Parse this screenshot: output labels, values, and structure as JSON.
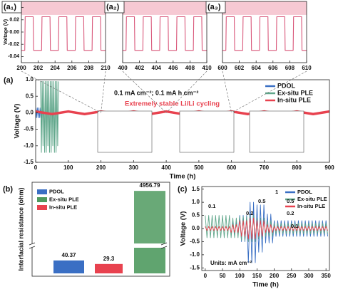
{
  "chart_data": [
    {
      "type": "line",
      "label": "(a₁)",
      "ylabel": "Voltage (V)",
      "xlim": [
        200,
        210
      ],
      "xticks": [
        200,
        202,
        204,
        206,
        208,
        210
      ],
      "ylim": [
        -0.05,
        0.05
      ],
      "yticks": [
        -0.04,
        -0.02,
        {
          "value": 0,
          "label": "0.00"
        },
        0.02,
        0.04
      ],
      "series": [
        {
          "color": "#d9577a",
          "x": [
            200,
            200.4,
            200.45,
            201.4,
            201.45,
            202.4,
            202.45,
            203.4,
            203.45,
            204.4,
            204.45,
            205.4,
            205.45,
            206.4,
            206.45,
            207.4,
            207.45,
            208.4,
            208.45,
            209.4,
            209.45,
            210
          ],
          "values": [
            -0.03,
            -0.03,
            0.025,
            0.025,
            -0.03,
            -0.03,
            0.025,
            0.025,
            -0.03,
            -0.03,
            0.025,
            0.025,
            -0.03,
            -0.03,
            0.025,
            0.025,
            -0.03,
            -0.03,
            0.025,
            0.025,
            -0.03,
            -0.03
          ]
        }
      ]
    },
    {
      "type": "line",
      "label": "(a₂)",
      "xlim": [
        400,
        410
      ],
      "xticks": [
        400,
        402,
        404,
        406,
        408,
        410
      ],
      "ylim": [
        -0.05,
        0.05
      ],
      "series": [
        {
          "color": "#d9577a",
          "x": [
            400,
            400.4,
            400.45,
            401.4,
            401.45,
            402.4,
            402.45,
            403.4,
            403.45,
            404.4,
            404.45,
            405.4,
            405.45,
            406.4,
            406.45,
            407.4,
            407.45,
            408.4,
            408.45,
            409.4,
            409.45,
            410
          ],
          "values": [
            -0.03,
            -0.03,
            0.025,
            0.025,
            -0.03,
            -0.03,
            0.025,
            0.025,
            -0.03,
            -0.03,
            0.025,
            0.025,
            -0.03,
            -0.03,
            0.025,
            0.025,
            -0.03,
            -0.03,
            0.025,
            0.025,
            -0.03,
            -0.03
          ]
        }
      ]
    },
    {
      "type": "line",
      "label": "(a₃)",
      "xlim": [
        600,
        610
      ],
      "xticks": [
        600,
        602,
        604,
        606,
        608,
        610
      ],
      "ylim": [
        -0.05,
        0.05
      ],
      "series": [
        {
          "color": "#d9577a",
          "x": [
            600,
            600.4,
            600.45,
            601.4,
            601.45,
            602.4,
            602.45,
            603.4,
            603.45,
            604.4,
            604.45,
            605.4,
            605.45,
            606.4,
            606.45,
            607.4,
            607.45,
            608.4,
            608.45,
            609.4,
            609.45,
            610
          ],
          "values": [
            -0.03,
            -0.03,
            0.025,
            0.025,
            -0.03,
            -0.03,
            0.025,
            0.025,
            -0.03,
            -0.03,
            0.025,
            0.025,
            -0.03,
            -0.03,
            0.025,
            0.025,
            -0.03,
            -0.03,
            0.025,
            0.025,
            -0.03,
            -0.03
          ]
        }
      ]
    },
    {
      "type": "line",
      "label": "(a)",
      "xlabel": "Time (h)",
      "ylabel": "Voltage (V)",
      "annotations": [
        "0.1 mA cm⁻²; 0.1 mA h cm⁻²",
        "Extremely stable Li/Li cycling"
      ],
      "xlim": [
        0,
        900
      ],
      "xticks": [
        0,
        100,
        200,
        300,
        400,
        500,
        600,
        700,
        800,
        900
      ],
      "ylim": [
        -1.5,
        1.0
      ],
      "yticks": [
        -1.5,
        {
          "value": -1,
          "label": "-1.0"
        },
        -0.5,
        {
          "value": 0,
          "label": "0.0"
        },
        0.5,
        {
          "value": 1,
          "label": "1.0"
        }
      ],
      "series": [
        {
          "name": "PDOL",
          "color": "#3a6fc4",
          "x": [
            0,
            2.5,
            5,
            7.5,
            10,
            12.5,
            15,
            17.5,
            20,
            22.5,
            25
          ],
          "values": [
            0.15,
            -0.15,
            0.15,
            -0.15,
            0.15,
            -0.15,
            0.15,
            -0.15,
            0.15,
            -0.15,
            0.15
          ]
        },
        {
          "name": "Ex-situ PLE",
          "color": "#5fa68a",
          "x": [
            15,
            17.5,
            20,
            22.5,
            25,
            27.5,
            30,
            32.5,
            35,
            37.5,
            40,
            42.5,
            45,
            47.5,
            50,
            52.5,
            55,
            57.5,
            60,
            62.5,
            65,
            67.5,
            70
          ],
          "values": [
            0.95,
            -1.2,
            0.95,
            -1.0,
            0.95,
            -1.2,
            0.95,
            -1.2,
            0.95,
            -1.0,
            0.95,
            -1.2,
            0.95,
            -1.2,
            0.95,
            -1.0,
            0.95,
            -1.2,
            0.95,
            -1.2,
            0.95,
            -1.0,
            0.95
          ]
        },
        {
          "name": "In-situ PLE",
          "color": "#e8424f",
          "x": [
            0,
            50,
            100,
            150,
            200,
            250,
            300,
            350,
            400,
            450,
            500,
            550,
            600,
            650,
            700,
            750,
            800,
            850,
            900
          ],
          "values": [
            0.04,
            -0.04,
            0.04,
            -0.04,
            0.04,
            -0.04,
            0.04,
            -0.04,
            0.04,
            -0.04,
            0.04,
            -0.04,
            0.04,
            -0.04,
            0.04,
            -0.04,
            0.04,
            -0.04,
            0.04
          ]
        }
      ]
    },
    {
      "type": "bar",
      "label": "(b)",
      "ylabel": "Interfacial resistance (ohm)",
      "ylim": [
        0,
        5500
      ],
      "ybreak": [
        80,
        1000
      ],
      "series": [
        {
          "name": "PDOL",
          "color": "#3a6fc4",
          "values": [
            40.37
          ]
        },
        {
          "name": "Ex-situ PLE",
          "color": "#4f9a5f",
          "values": [
            4956.79
          ]
        },
        {
          "name": "In-situ PLE",
          "color": "#e8424f",
          "values": [
            29.3
          ]
        }
      ]
    },
    {
      "type": "line",
      "label": "(c)",
      "xlabel": "Time (h)",
      "ylabel": "Voltage (V)",
      "annotations": [
        "0.1",
        "0.2",
        "0.5",
        "1",
        "0.5",
        "0.2",
        "0.1",
        "Units: mA cm⁻²"
      ],
      "xlim": [
        -10,
        360
      ],
      "xticks": [
        0,
        50,
        100,
        150,
        200,
        250,
        300,
        350
      ],
      "ylim": [
        -1.6,
        1.6
      ],
      "yticks": [
        -1.5,
        {
          "value": -1,
          "label": "-1.0"
        },
        -0.5,
        {
          "value": 0,
          "label": "0.0"
        },
        0.5,
        {
          "value": 1,
          "label": "1.0"
        },
        1.5
      ],
      "x": [
        0,
        5,
        10,
        15,
        20,
        25,
        30,
        35,
        40,
        45,
        50,
        55,
        60,
        65,
        70,
        75,
        80,
        85,
        90,
        95,
        100,
        105,
        110,
        115,
        120,
        125,
        130,
        135,
        140,
        145,
        150,
        155,
        160,
        165,
        170,
        175,
        180,
        185,
        190,
        195,
        200,
        205,
        210,
        215,
        220,
        225,
        230,
        235,
        240,
        245,
        250,
        255,
        260,
        265,
        270,
        275,
        280,
        285,
        290,
        295,
        300,
        305,
        310,
        315,
        320,
        325,
        330,
        335,
        340,
        345,
        350,
        355
      ],
      "series": [
        {
          "name": "PDOL",
          "color": "#3a6fc4",
          "values": [
            null,
            null,
            null,
            null,
            null,
            null,
            null,
            null,
            null,
            null,
            null,
            null,
            null,
            null,
            null,
            -0.25,
            0.25,
            -0.25,
            0.25,
            -0.25,
            0.5,
            -0.5,
            0.5,
            -0.5,
            0.5,
            -1.3,
            1.0,
            -1.3,
            1.0,
            -1.3,
            0.9,
            -0.9,
            0.9,
            -0.9,
            0.9,
            -0.55,
            0.55,
            -0.55,
            0.55,
            -0.55,
            0.3,
            -0.3,
            0.3,
            -0.3,
            0.3,
            -0.3,
            0.3,
            -0.3,
            0.3,
            -0.3,
            0.3,
            -0.3,
            0.3,
            -0.3,
            0.3,
            -0.3,
            0.3,
            -0.3,
            0.3,
            -0.3,
            0.3,
            -0.3,
            0.3,
            -0.3,
            0.3,
            -0.3,
            0.3,
            -0.3,
            0.3,
            -0.3,
            0.3,
            -0.3
          ]
        },
        {
          "name": "Ex-situ PLE",
          "color": "#5fa68a",
          "values": [
            0.5,
            -0.35,
            0.5,
            -0.35,
            0.5,
            -0.35,
            0.5,
            -0.35,
            0.5,
            -0.35,
            0.5,
            -0.35,
            0.5,
            -0.35,
            0.5,
            -0.35,
            0.4,
            -0.35,
            0.4,
            -0.35,
            0.45,
            -0.45,
            0.45,
            -0.45,
            0.45,
            -0.5,
            0.5,
            -0.5,
            0.5,
            -0.5,
            0.4,
            -0.4,
            0.4,
            -0.4,
            0.4,
            -0.3,
            0.3,
            -0.3,
            0.3,
            -0.3,
            0.2,
            -0.2,
            0.2,
            -0.2,
            0.2,
            -0.2,
            0.2,
            -0.2,
            0.2,
            -0.2,
            0.2,
            -0.2,
            0.2,
            -0.2,
            0.2,
            -0.2,
            0.2,
            -0.2,
            0.2,
            -0.2,
            0.2,
            -0.2,
            0.2,
            -0.2,
            0.2,
            -0.2,
            0.2,
            -0.2,
            0.2,
            -0.2,
            0.2,
            -0.2
          ]
        },
        {
          "name": "In-situ PLE",
          "color": "#e8424f",
          "values": [
            0.08,
            -0.08,
            0.08,
            -0.08,
            0.08,
            -0.08,
            0.08,
            -0.08,
            0.08,
            -0.08,
            0.08,
            -0.08,
            0.08,
            -0.08,
            0.08,
            -0.15,
            0.15,
            -0.15,
            0.15,
            -0.15,
            0.3,
            -0.3,
            0.3,
            -0.3,
            0.3,
            -0.4,
            0.4,
            -0.4,
            0.4,
            -0.4,
            0.3,
            -0.3,
            0.3,
            -0.3,
            0.3,
            -0.15,
            0.15,
            -0.15,
            0.15,
            -0.15,
            0.08,
            -0.08,
            0.08,
            -0.08,
            0.08,
            -0.08,
            0.08,
            -0.08,
            0.08,
            -0.08,
            0.08,
            -0.08,
            0.08,
            -0.08,
            0.08,
            -0.08,
            0.08,
            -0.08,
            0.08,
            -0.08,
            0.08,
            -0.08,
            0.08,
            -0.08,
            0.08,
            -0.08,
            0.08,
            -0.08,
            0.08,
            -0.08,
            0.08,
            -0.08
          ]
        }
      ]
    }
  ]
}
